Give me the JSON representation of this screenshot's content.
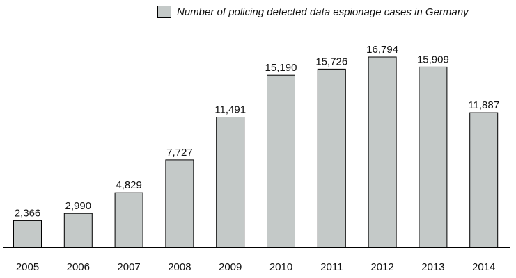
{
  "chart_data": {
    "type": "bar",
    "title": "",
    "xlabel": "",
    "ylabel": "",
    "categories": [
      "2005",
      "2006",
      "2007",
      "2008",
      "2009",
      "2010",
      "2011",
      "2012",
      "2013",
      "2014"
    ],
    "values": [
      2366,
      2990,
      4829,
      7727,
      11491,
      15190,
      15726,
      16794,
      15909,
      11887
    ],
    "value_labels": [
      "2,366",
      "2,990",
      "4,829",
      "7,727",
      "11,491",
      "15,190",
      "15,726",
      "16,794",
      "15,909",
      "11,887"
    ],
    "legend": [
      "Number of policing detected data espionage cases in Germany"
    ],
    "legend_position": "top-right",
    "grid": false,
    "colors": {
      "bar": "#c4c9c8",
      "bar_stroke": "#000000",
      "axis": "#000000",
      "text": "#111111"
    }
  }
}
